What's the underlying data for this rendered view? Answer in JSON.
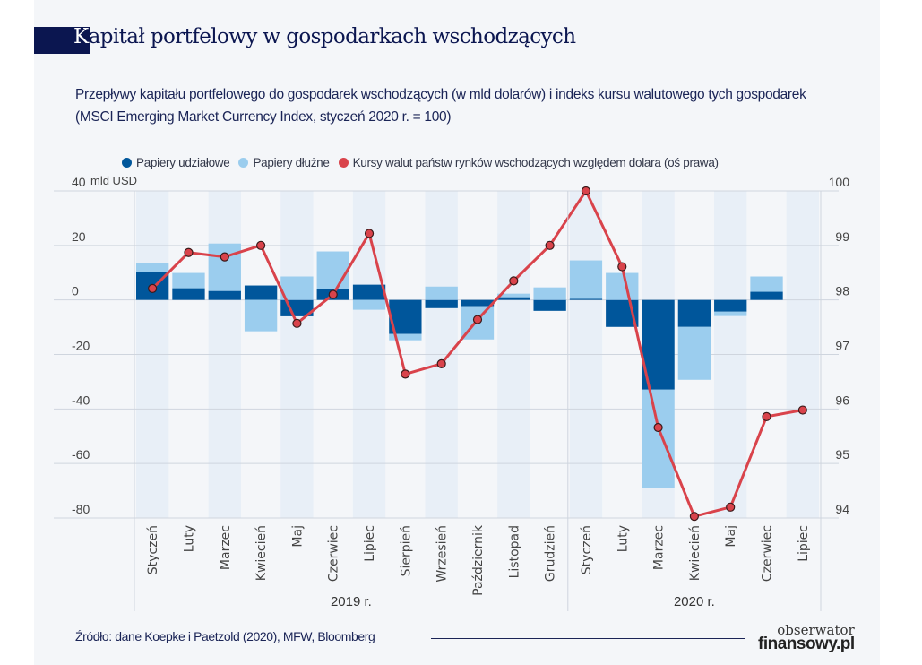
{
  "title": {
    "first_letter": "K",
    "rest": "apitał portfelowy w gospodarkach wschodzących"
  },
  "subtitle": "Przepływy kapitału portfelowego do gospodarek wschodzących (w mld dolarów) i indeks kursu walutowego tych gospodarek (MSCI Emerging Market Currency Index, styczeń 2020 r. = 100)",
  "source": "Źródło: dane Koepke i Paetzold (2020), MFW, Bloomberg",
  "logo": {
    "line1": "obserwator",
    "line2": "finansowy.pl"
  },
  "colors": {
    "equity": "#00569b",
    "debt": "#9bcdee",
    "fx": "#d9434b",
    "title_navy": "#0b1650"
  },
  "chart_data": {
    "type": "bar+line",
    "stacked": true,
    "left_axis": {
      "unit_label": "mld USD",
      "ylim": [
        -80,
        40
      ],
      "ticks": [
        40,
        20,
        0,
        -20,
        -40,
        -60,
        -80
      ]
    },
    "right_axis": {
      "ylim": [
        94,
        100
      ],
      "ticks": [
        100,
        99,
        98,
        97,
        96,
        95,
        94
      ]
    },
    "grid": true,
    "legend_placement": "top",
    "categories": [
      "Styczeń",
      "Luty",
      "Marzec",
      "Kwiecień",
      "Maj",
      "Czerwiec",
      "Lipiec",
      "Sierpień",
      "Wrzesień",
      "Październik",
      "Listopad",
      "Grudzień",
      "Styczeń",
      "Luty",
      "Marzec",
      "Kwiecień",
      "Maj",
      "Czerwiec",
      "Lipiec"
    ],
    "groups": [
      {
        "label": "2019 r.",
        "count": 12
      },
      {
        "label": "2020 r.",
        "count": 7
      }
    ],
    "series": [
      {
        "name": "Papiery udziałowe",
        "type": "bar",
        "axis": "left",
        "values": [
          10.2,
          4.3,
          3.3,
          5.3,
          -6.0,
          4.0,
          5.6,
          -12.5,
          -3.0,
          -2.3,
          1.0,
          -4.0,
          0.4,
          -9.9,
          -32.9,
          -9.9,
          -4.3,
          3.0,
          null
        ]
      },
      {
        "name": "Papiery dłużne",
        "type": "bar",
        "axis": "left",
        "values": [
          3.3,
          5.6,
          17.4,
          -11.5,
          8.6,
          13.8,
          -3.6,
          -2.3,
          4.9,
          -12.2,
          1.3,
          4.6,
          14.1,
          9.9,
          -36.1,
          -19.4,
          -1.6,
          5.6,
          null
        ]
      },
      {
        "name": "Kursy walut państw rynków wschodzących względem dolara (oś prawa)",
        "type": "line",
        "axis": "right",
        "values": [
          98.21,
          98.87,
          98.79,
          99.0,
          97.57,
          98.1,
          99.22,
          96.64,
          96.83,
          97.64,
          98.35,
          99.0,
          100.0,
          98.61,
          95.66,
          94.03,
          94.2,
          95.86,
          95.98
        ]
      }
    ]
  }
}
